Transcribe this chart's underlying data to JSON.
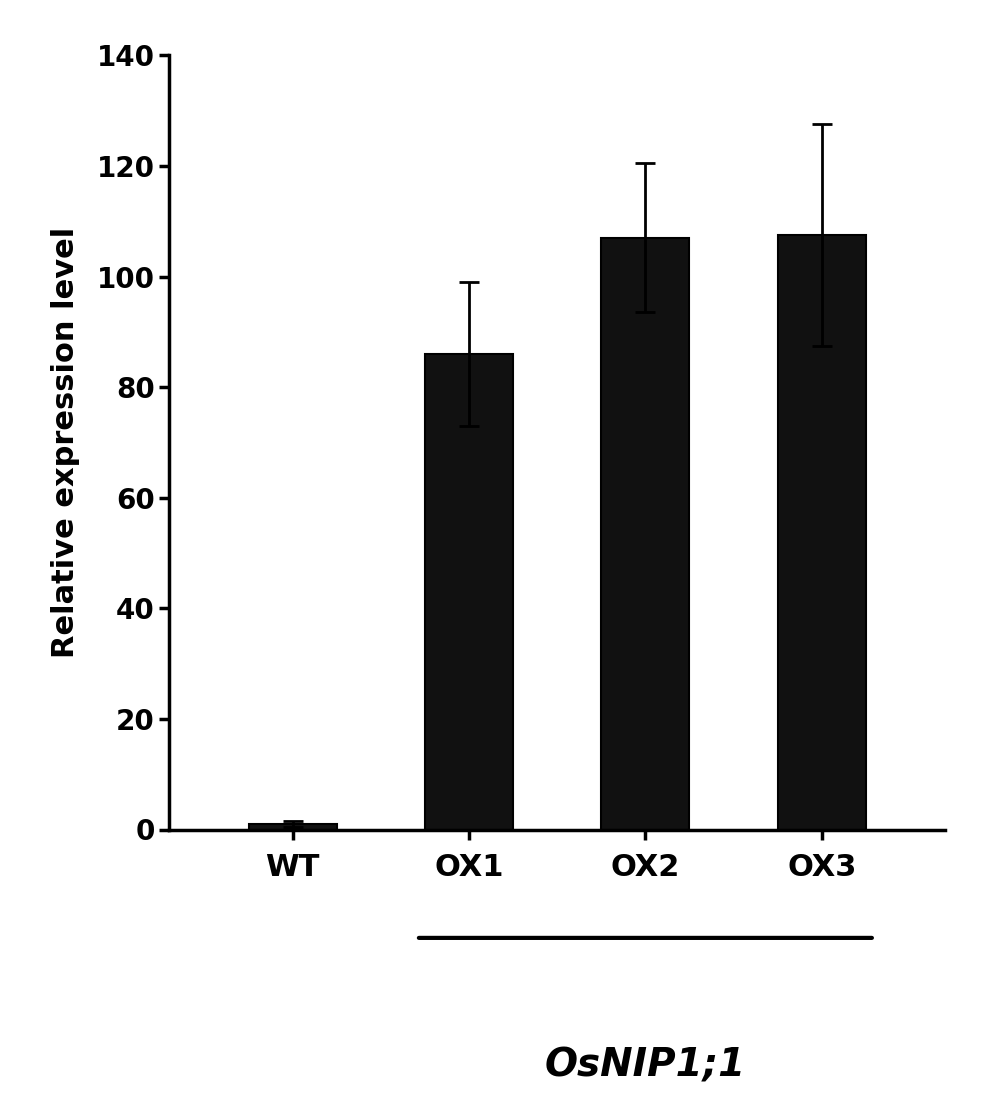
{
  "categories": [
    "WT",
    "OX1",
    "OX2",
    "OX3"
  ],
  "values": [
    1.0,
    86.0,
    107.0,
    107.5
  ],
  "errors": [
    0.5,
    13.0,
    13.5,
    20.0
  ],
  "bar_color": "#111111",
  "bar_width": 0.5,
  "ylabel": "Relative expression level",
  "ylim": [
    0,
    140
  ],
  "yticks": [
    0,
    20,
    40,
    60,
    80,
    100,
    120,
    140
  ],
  "xlabel_main": "OsNIP1;1",
  "underline_from": 1,
  "underline_to": 3,
  "background_color": "#ffffff",
  "ylabel_fontsize": 22,
  "tick_fontsize": 20,
  "xlabel_fontsize": 28,
  "category_fontsize": 22,
  "bar_edge_color": "#000000",
  "error_color": "#000000",
  "capsize": 7
}
